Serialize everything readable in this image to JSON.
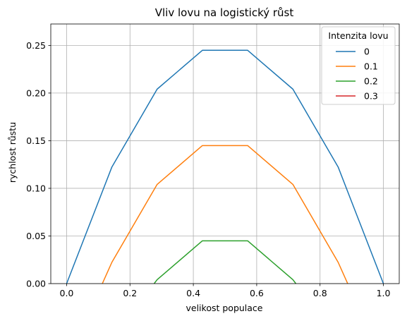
{
  "chart_data": {
    "type": "line",
    "title": "Vliv lovu na logistický růst",
    "xlabel": "velikost populace",
    "ylabel": "rychlost růstu",
    "xlim": [
      -0.05,
      1.05
    ],
    "ylim": [
      0.0,
      0.2725
    ],
    "xticks": [
      0.0,
      0.2,
      0.4,
      0.6,
      0.8,
      1.0
    ],
    "xtick_labels": [
      "0.0",
      "0.2",
      "0.4",
      "0.6",
      "0.8",
      "1.0"
    ],
    "yticks": [
      0.0,
      0.05,
      0.1,
      0.15,
      0.2,
      0.25
    ],
    "ytick_labels": [
      "0.00",
      "0.05",
      "0.10",
      "0.15",
      "0.20",
      "0.25"
    ],
    "grid": true,
    "legend": {
      "title": "Intenzita lovu",
      "position": "top-right"
    },
    "series": [
      {
        "name": "0",
        "color": "#1f77b4",
        "points": [
          [
            0.0,
            0.0
          ],
          [
            0.1429,
            0.1224
          ],
          [
            0.2857,
            0.2041
          ],
          [
            0.4286,
            0.2449
          ],
          [
            0.5714,
            0.2449
          ],
          [
            0.7143,
            0.2041
          ],
          [
            0.8571,
            0.1224
          ],
          [
            1.0,
            0.0
          ]
        ]
      },
      {
        "name": "0.1",
        "color": "#ff7f0e",
        "points": [
          [
            0.1127,
            0.0
          ],
          [
            0.1429,
            0.0224
          ],
          [
            0.2857,
            0.1041
          ],
          [
            0.4286,
            0.1449
          ],
          [
            0.5714,
            0.1449
          ],
          [
            0.7143,
            0.1041
          ],
          [
            0.8571,
            0.0224
          ],
          [
            0.8873,
            0.0
          ]
        ]
      },
      {
        "name": "0.2",
        "color": "#2ca02c",
        "points": [
          [
            0.2763,
            0.0
          ],
          [
            0.2857,
            0.0041
          ],
          [
            0.4286,
            0.0449
          ],
          [
            0.5714,
            0.0449
          ],
          [
            0.7143,
            0.0041
          ],
          [
            0.7237,
            0.0
          ]
        ]
      },
      {
        "name": "0.3",
        "color": "#d62728",
        "points": []
      }
    ]
  }
}
